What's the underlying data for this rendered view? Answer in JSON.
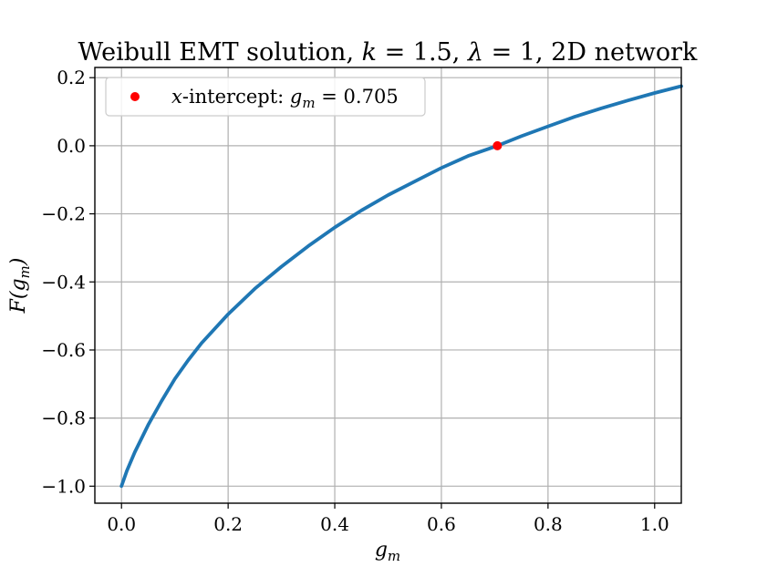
{
  "chart_data": {
    "type": "line",
    "title": "Weibull EMT solution, k = 1.5, λ = 1, 2D network",
    "xlabel": "g_m",
    "ylabel": "F(g_m)",
    "xlim": [
      -0.05,
      1.05
    ],
    "ylim": [
      -1.05,
      0.23
    ],
    "x_ticks": [
      0.0,
      0.2,
      0.4,
      0.6,
      0.8,
      1.0
    ],
    "x_tick_labels": [
      "0.0",
      "0.2",
      "0.4",
      "0.6",
      "0.8",
      "1.0"
    ],
    "y_ticks": [
      -1.0,
      -0.8,
      -0.6,
      -0.4,
      -0.2,
      0.0,
      0.2
    ],
    "y_tick_labels": [
      "−1.0",
      "−0.8",
      "−0.6",
      "−0.4",
      "−0.2",
      "0.0",
      "0.2"
    ],
    "grid": true,
    "legend_position": "top-left",
    "series": [
      {
        "color": "#1f77b4",
        "x": [
          0.0,
          0.01,
          0.025,
          0.05,
          0.075,
          0.1,
          0.125,
          0.15,
          0.2,
          0.25,
          0.3,
          0.35,
          0.4,
          0.45,
          0.5,
          0.55,
          0.6,
          0.65,
          0.705,
          0.75,
          0.8,
          0.85,
          0.9,
          0.95,
          1.0,
          1.05
        ],
        "y": [
          -1.0,
          -0.955,
          -0.9,
          -0.82,
          -0.75,
          -0.685,
          -0.63,
          -0.58,
          -0.495,
          -0.42,
          -0.355,
          -0.295,
          -0.24,
          -0.19,
          -0.145,
          -0.105,
          -0.065,
          -0.03,
          0.0,
          0.028,
          0.057,
          0.085,
          0.11,
          0.133,
          0.155,
          0.175
        ]
      }
    ],
    "points": [
      {
        "label": "x-intercept: g_m = 0.705",
        "x": 0.705,
        "y": 0.0,
        "color": "#ff0000"
      }
    ]
  }
}
